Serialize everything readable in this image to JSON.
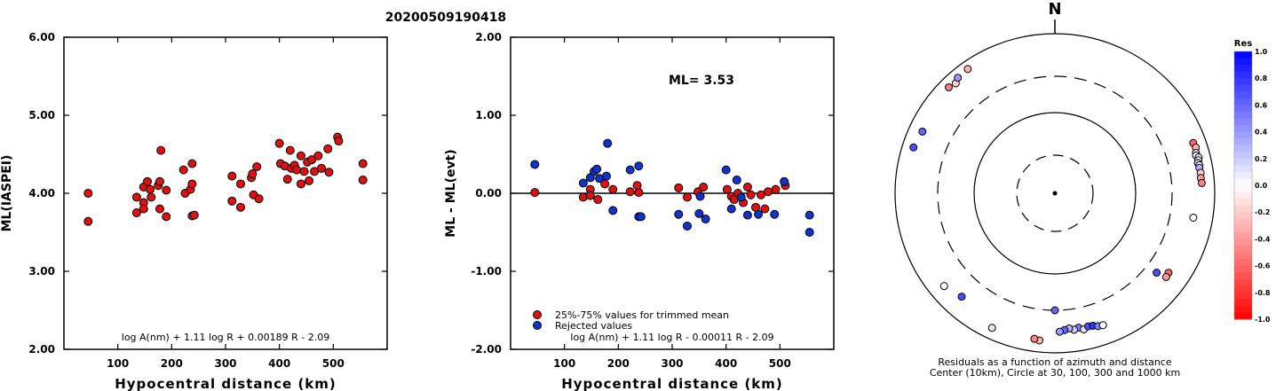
{
  "title": "20200509190418",
  "colors": {
    "trimmed": "#dd1111",
    "rejected": "#1133cc",
    "axis": "#000000"
  },
  "chart_data": [
    {
      "type": "scatter",
      "name": "left",
      "xlabel": "Hypocentral distance (km)",
      "ylabel": "ML(IASPEI)",
      "xlim": [
        0,
        600
      ],
      "ylim": [
        2.0,
        6.0
      ],
      "xticks": [
        "100",
        "200",
        "300",
        "400",
        "500"
      ],
      "xtick_values": [
        100,
        200,
        300,
        400,
        500
      ],
      "yticks": [
        "2.00",
        "3.00",
        "4.00",
        "5.00",
        "6.00"
      ],
      "ytick_values": [
        2,
        3,
        4,
        5,
        6
      ],
      "formula": "log A(nm) + 1.11 log R + 0.00189 R - 2.09",
      "points": [
        [
          45,
          4.0
        ],
        [
          45,
          3.64
        ],
        [
          135,
          3.95
        ],
        [
          135,
          3.75
        ],
        [
          148,
          4.08
        ],
        [
          148,
          3.88
        ],
        [
          148,
          3.8
        ],
        [
          155,
          4.15
        ],
        [
          160,
          4.05
        ],
        [
          162,
          3.95
        ],
        [
          175,
          4.1
        ],
        [
          178,
          4.15
        ],
        [
          178,
          3.8
        ],
        [
          180,
          4.55
        ],
        [
          190,
          4.04
        ],
        [
          190,
          3.7
        ],
        [
          222,
          4.3
        ],
        [
          225,
          4.0
        ],
        [
          235,
          4.05
        ],
        [
          238,
          4.12
        ],
        [
          238,
          4.38
        ],
        [
          238,
          3.71
        ],
        [
          242,
          3.72
        ],
        [
          312,
          4.22
        ],
        [
          312,
          3.9
        ],
        [
          328,
          4.12
        ],
        [
          328,
          3.82
        ],
        [
          348,
          4.2
        ],
        [
          350,
          4.25
        ],
        [
          352,
          3.98
        ],
        [
          358,
          4.34
        ],
        [
          362,
          3.93
        ],
        [
          400,
          4.64
        ],
        [
          402,
          4.38
        ],
        [
          410,
          4.35
        ],
        [
          415,
          4.18
        ],
        [
          420,
          4.55
        ],
        [
          422,
          4.32
        ],
        [
          428,
          4.36
        ],
        [
          432,
          4.3
        ],
        [
          440,
          4.48
        ],
        [
          440,
          4.12
        ],
        [
          446,
          4.28
        ],
        [
          452,
          4.4
        ],
        [
          455,
          4.16
        ],
        [
          460,
          4.43
        ],
        [
          465,
          4.28
        ],
        [
          472,
          4.48
        ],
        [
          478,
          4.32
        ],
        [
          490,
          4.57
        ],
        [
          492,
          4.27
        ],
        [
          508,
          4.72
        ],
        [
          510,
          4.67
        ],
        [
          555,
          4.38
        ],
        [
          555,
          4.17
        ]
      ]
    },
    {
      "type": "scatter",
      "name": "right",
      "xlabel": "Hypocentral distance (km)",
      "ylabel": "ML - ML(evt)",
      "xlim": [
        0,
        600
      ],
      "ylim": [
        -2.0,
        2.0
      ],
      "xticks": [
        "100",
        "200",
        "300",
        "400",
        "500"
      ],
      "xtick_values": [
        100,
        200,
        300,
        400,
        500
      ],
      "yticks": [
        "-2.00",
        "-1.00",
        "0.00",
        "1.00",
        "2.00"
      ],
      "ytick_values": [
        -2,
        -1,
        0,
        1,
        2
      ],
      "ml_label": "ML=  3.53",
      "formula": "log A(nm) + 1.11 log R - 0.00011 R - 2.09",
      "legend": [
        {
          "label": "25%-75% values for trimmed mean",
          "color": "#dd1111"
        },
        {
          "label": "Rejected values",
          "color": "#1133cc"
        }
      ],
      "trimmed": [
        [
          45,
          0.01
        ],
        [
          135,
          -0.05
        ],
        [
          148,
          0.05
        ],
        [
          148,
          -0.03
        ],
        [
          162,
          -0.08
        ],
        [
          175,
          0.12
        ],
        [
          190,
          0.05
        ],
        [
          222,
          0.02
        ],
        [
          235,
          0.1
        ],
        [
          238,
          0.01
        ],
        [
          312,
          0.07
        ],
        [
          328,
          -0.05
        ],
        [
          348,
          0.02
        ],
        [
          358,
          0.08
        ],
        [
          402,
          0.05
        ],
        [
          410,
          -0.04
        ],
        [
          415,
          -0.08
        ],
        [
          422,
          0.0
        ],
        [
          432,
          -0.12
        ],
        [
          440,
          0.08
        ],
        [
          446,
          -0.02
        ],
        [
          455,
          -0.18
        ],
        [
          465,
          -0.02
        ],
        [
          472,
          -0.2
        ],
        [
          478,
          0.02
        ],
        [
          492,
          0.05
        ],
        [
          510,
          0.1
        ]
      ],
      "rejected": [
        [
          45,
          0.37
        ],
        [
          135,
          0.13
        ],
        [
          148,
          0.2
        ],
        [
          155,
          0.28
        ],
        [
          160,
          0.31
        ],
        [
          165,
          0.19
        ],
        [
          178,
          0.22
        ],
        [
          180,
          0.64
        ],
        [
          190,
          -0.22
        ],
        [
          222,
          0.3
        ],
        [
          238,
          0.35
        ],
        [
          238,
          -0.3
        ],
        [
          242,
          -0.3
        ],
        [
          312,
          -0.27
        ],
        [
          328,
          -0.42
        ],
        [
          350,
          -0.26
        ],
        [
          352,
          -0.04
        ],
        [
          362,
          -0.33
        ],
        [
          400,
          0.3
        ],
        [
          410,
          -0.2
        ],
        [
          420,
          0.17
        ],
        [
          428,
          -0.05
        ],
        [
          440,
          -0.28
        ],
        [
          460,
          -0.27
        ],
        [
          490,
          -0.27
        ],
        [
          508,
          0.15
        ],
        [
          555,
          -0.28
        ],
        [
          555,
          -0.5
        ]
      ]
    },
    {
      "type": "polar-scatter",
      "name": "polar",
      "north_label": "N",
      "caption_line1": "Residuals as a function of azimuth and distance",
      "caption_line2": "Center (10km), Circle at 30, 100, 300 and 1000 km",
      "colorbar": {
        "title": "Res",
        "ticks": [
          "1.0",
          "0.8",
          "0.6",
          "0.4",
          "0.2",
          "0.0",
          "-0.2",
          "-0.4",
          "-0.6",
          "-0.8",
          "-1.0"
        ],
        "values": [
          1.0,
          0.8,
          0.6,
          0.4,
          0.2,
          0.0,
          -0.2,
          -0.4,
          -0.6,
          -0.8,
          -1.0
        ]
      },
      "stations": [
        [
          315,
          760,
          -0.5
        ],
        [
          318,
          720,
          -0.2
        ],
        [
          320,
          780,
          0.4
        ],
        [
          325,
          800,
          -0.3
        ],
        [
          295,
          680,
          0.6
        ],
        [
          288,
          730,
          0.7
        ],
        [
          70,
          700,
          -0.6
        ],
        [
          72,
          720,
          -0.3
        ],
        [
          74,
          690,
          -0.1
        ],
        [
          75,
          680,
          0.1
        ],
        [
          76,
          720,
          0.05
        ],
        [
          77,
          700,
          -0.05
        ],
        [
          78,
          680,
          0.2
        ],
        [
          79,
          700,
          0.0
        ],
        [
          80,
          690,
          0.3
        ],
        [
          82,
          700,
          -0.2
        ],
        [
          84,
          690,
          -0.4
        ],
        [
          86,
          700,
          -0.5
        ],
        [
          100,
          580,
          -0.05
        ],
        [
          180,
          300,
          0.6
        ],
        [
          125,
          550,
          -0.6
        ],
        [
          127,
          560,
          -0.4
        ],
        [
          128,
          420,
          0.7
        ],
        [
          170,
          520,
          0.5
        ],
        [
          172,
          540,
          0.2
        ],
        [
          174,
          510,
          0.3
        ],
        [
          176,
          530,
          0.6
        ],
        [
          178,
          550,
          0.4
        ],
        [
          168,
          560,
          0.1
        ],
        [
          166,
          530,
          0.7
        ],
        [
          164,
          540,
          0.8
        ],
        [
          162,
          570,
          0.5
        ],
        [
          160,
          580,
          0.0
        ],
        [
          186,
          720,
          -0.3
        ],
        [
          188,
          700,
          -0.5
        ],
        [
          205,
          730,
          0.1
        ],
        [
          222,
          560,
          0.7
        ],
        [
          230,
          650,
          0.0
        ]
      ]
    }
  ]
}
